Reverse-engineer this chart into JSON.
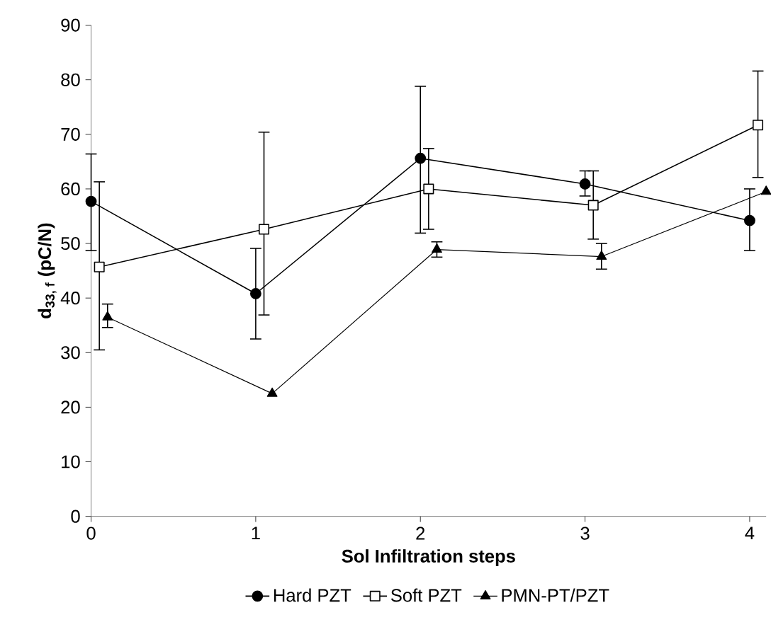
{
  "chart_data": {
    "type": "line",
    "xlabel": "Sol Infiltration steps",
    "ylabel": "d$_{33, f}$ (pC/N)",
    "xlim": [
      0,
      4.1
    ],
    "xticks": [
      0,
      1,
      2,
      3,
      4
    ],
    "ylim": [
      0,
      90
    ],
    "yticks": [
      0,
      10,
      20,
      30,
      40,
      50,
      60,
      70,
      80,
      90
    ],
    "grid": false,
    "legend": "bottom",
    "line_style": "solid",
    "series": [
      {
        "name": "Hard PZT",
        "color": "#000000",
        "marker": "circle",
        "x": [
          0,
          1,
          2,
          3,
          4
        ],
        "values": [
          57.7,
          40.8,
          65.6,
          60.9,
          54.2
        ],
        "errors": [
          [
            48.7,
            66.4
          ],
          [
            32.5,
            49.1
          ],
          [
            51.9,
            78.8
          ],
          [
            58.7,
            63.3
          ],
          [
            48.7,
            60.0
          ]
        ]
      },
      {
        "name": "Soft PZT",
        "color": "#000000",
        "marker": "square",
        "x": [
          0.05,
          1.05,
          2.05,
          3.05,
          4.05
        ],
        "values": [
          45.7,
          52.6,
          60.0,
          57.0,
          71.7
        ],
        "errors": [
          [
            30.5,
            61.3
          ],
          [
            36.9,
            70.4
          ],
          [
            52.6,
            67.4
          ],
          [
            50.8,
            63.3
          ],
          [
            62.1,
            81.6
          ]
        ]
      },
      {
        "name": "PMN-PT/PZT",
        "color": "#000000",
        "marker": "triangle",
        "x": [
          0.1,
          1.1,
          2.1,
          3.1,
          4.1
        ],
        "values": [
          36.5,
          22.5,
          48.9,
          47.6,
          59.5
        ],
        "errors": [
          [
            34.6,
            38.9
          ],
          null,
          [
            47.5,
            50.3
          ],
          [
            45.3,
            50.0
          ],
          null
        ]
      }
    ]
  }
}
